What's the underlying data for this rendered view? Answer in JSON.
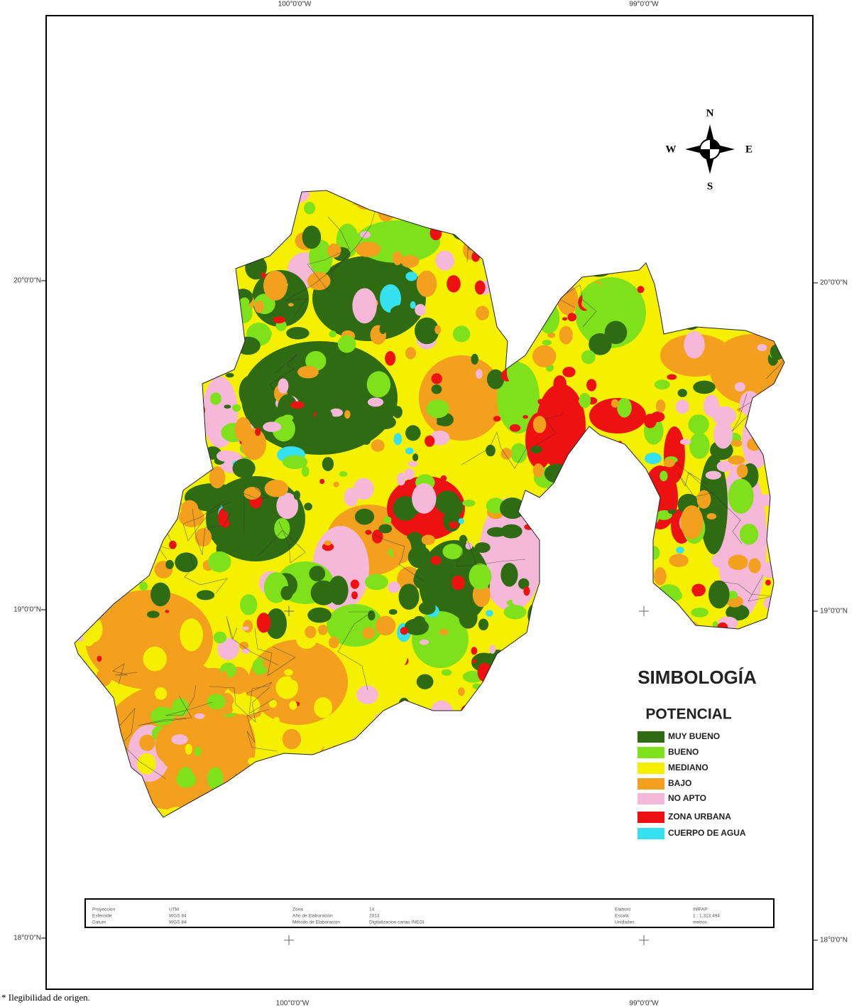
{
  "coordinates": {
    "top": [
      "100°0'0\"W",
      "99°0'0\"W"
    ],
    "bottom": [
      "100°0'0\"W",
      "99°0'0\"W"
    ],
    "left": [
      "20°0'0\"N",
      "19°0'0\"N",
      "18°0'0\"N"
    ],
    "right": [
      "20°0'0\"N",
      "19°0'0\"N",
      "18°0'0\"N"
    ]
  },
  "compass": {
    "north": "N",
    "south": "S",
    "east": "E",
    "west": "W"
  },
  "legend": {
    "title": "SIMBOLOGÍA",
    "subtitle": "POTENCIAL",
    "items": [
      {
        "label": "MUY BUENO",
        "color": "#2e6b12"
      },
      {
        "label": "BUENO",
        "color": "#7ee11c"
      },
      {
        "label": "MEDIANO",
        "color": "#f5f000"
      },
      {
        "label": "BAJO",
        "color": "#f2a01e"
      },
      {
        "label": "NO APTO",
        "color": "#f5b8d8"
      },
      {
        "label": "ZONA URBANA",
        "color": "#ee1111"
      },
      {
        "label": "CUERPO DE AGUA",
        "color": "#35e0ef"
      }
    ]
  },
  "info_box": {
    "rows": [
      [
        "Proyeccion",
        "UTM",
        "Zona",
        "14",
        "Elaboró",
        "INIFAP"
      ],
      [
        "Esferoide",
        "WGS 84",
        "Año de Elaboración",
        "2013",
        "Escala",
        "1 : 1,313,494"
      ],
      [
        "Datum",
        "WGS 84",
        "Método de Elaboración",
        "Digitalizacion cartas INEGI",
        "Unidades",
        "metros"
      ]
    ]
  },
  "footnote": "* Ilegibilidad de origen."
}
